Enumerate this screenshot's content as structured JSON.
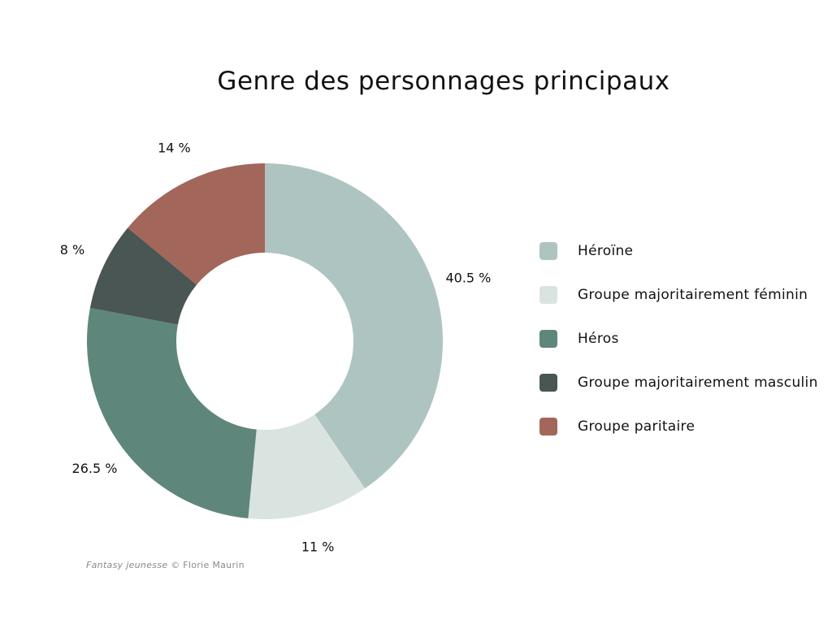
{
  "chart_data": {
    "type": "pie",
    "title": "Genre des personnages principaux",
    "categories": [
      "Héroïne",
      "Groupe majoritairement féminin",
      "Héros",
      "Groupe majoritairement masculin",
      "Groupe paritaire"
    ],
    "values": [
      40.5,
      11,
      26.5,
      8,
      14
    ],
    "data_labels": [
      "40.5 %",
      "11 %",
      "26.5 %",
      "8 %",
      "14 %"
    ],
    "colors": [
      "#aec4c0",
      "#d9e4e1",
      "#5f867b",
      "#4a5653",
      "#a3665a"
    ],
    "donut": true,
    "start_angle": "top",
    "direction": "clockwise",
    "legend_position": "right"
  },
  "credit": {
    "work": "Fantasy jeunesse",
    "author": "© Florie Maurin"
  }
}
